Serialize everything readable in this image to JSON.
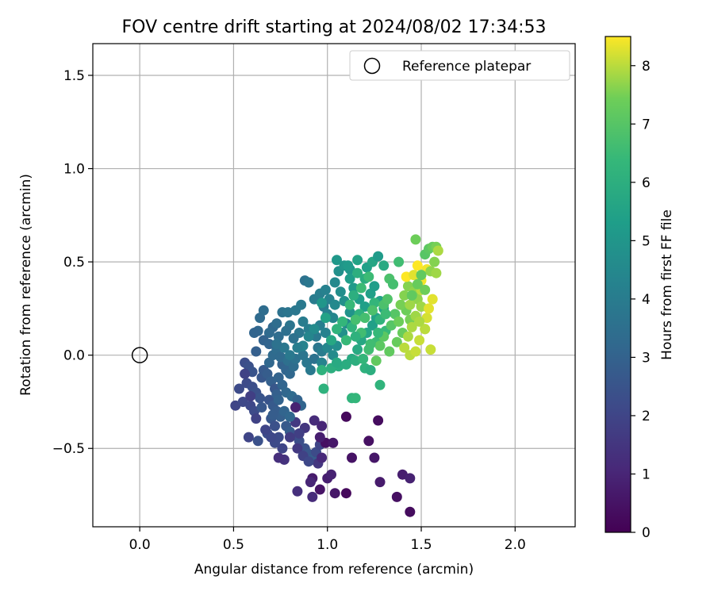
{
  "chart_data": {
    "type": "scatter",
    "title": "FOV centre drift starting at 2024/08/02 17:34:53",
    "xlabel": "Angular distance from reference (arcmin)",
    "ylabel": "Rotation from reference (arcmin)",
    "xlim": [
      -0.25,
      2.32
    ],
    "ylim": [
      -0.92,
      1.67
    ],
    "xticks": [
      0.0,
      0.5,
      1.0,
      1.5,
      2.0
    ],
    "xtick_labels": [
      "0.0",
      "0.5",
      "1.0",
      "1.5",
      "2.0"
    ],
    "yticks": [
      -0.5,
      0.0,
      0.5,
      1.0,
      1.5
    ],
    "ytick_labels": [
      "−0.5",
      "0.0",
      "0.5",
      "1.0",
      "1.5"
    ],
    "grid": true,
    "legend": {
      "position": "upper-right",
      "entries": [
        {
          "label": "Reference platepar",
          "marker": "open-circle"
        }
      ]
    },
    "reference_point": {
      "x": 0.0,
      "y": 0.0
    },
    "colorbar": {
      "label": "Hours from first FF file",
      "min": 0,
      "max": 8.5,
      "ticks": [
        0,
        1,
        2,
        3,
        4,
        5,
        6,
        7,
        8
      ],
      "colormap": "viridis"
    },
    "points": [
      [
        0.51,
        -0.27,
        2.0
      ],
      [
        0.55,
        -0.25,
        2.1
      ],
      [
        0.53,
        -0.18,
        2.2
      ],
      [
        0.56,
        -0.04,
        2.3
      ],
      [
        0.58,
        -0.06,
        2.4
      ],
      [
        0.6,
        -0.09,
        2.5
      ],
      [
        0.57,
        -0.15,
        2.2
      ],
      [
        0.6,
        -0.17,
        2.3
      ],
      [
        0.62,
        -0.2,
        2.4
      ],
      [
        0.64,
        -0.23,
        2.5
      ],
      [
        0.59,
        -0.27,
        2.1
      ],
      [
        0.61,
        -0.3,
        2.2
      ],
      [
        0.58,
        -0.44,
        2.0
      ],
      [
        0.63,
        -0.46,
        2.4
      ],
      [
        0.65,
        -0.12,
        2.6
      ],
      [
        0.66,
        -0.08,
        2.7
      ],
      [
        0.68,
        -0.1,
        2.8
      ],
      [
        0.7,
        -0.14,
        2.9
      ],
      [
        0.72,
        -0.18,
        2.6
      ],
      [
        0.69,
        -0.24,
        2.5
      ],
      [
        0.71,
        -0.27,
        2.7
      ],
      [
        0.73,
        -0.3,
        2.8
      ],
      [
        0.75,
        -0.33,
        2.9
      ],
      [
        0.7,
        -0.34,
        2.6
      ],
      [
        0.72,
        -0.38,
        2.4
      ],
      [
        0.68,
        -0.42,
        2.3
      ],
      [
        0.74,
        -0.44,
        2.2
      ],
      [
        0.78,
        -0.38,
        2.7
      ],
      [
        0.8,
        -0.41,
        2.8
      ],
      [
        0.82,
        -0.43,
        2.5
      ],
      [
        0.85,
        -0.46,
        2.3
      ],
      [
        0.88,
        -0.5,
        2.4
      ],
      [
        0.9,
        -0.53,
        2.6
      ],
      [
        0.92,
        -0.56,
        2.8
      ],
      [
        0.94,
        -0.52,
        2.2
      ],
      [
        0.96,
        -0.48,
        2.0
      ],
      [
        0.76,
        -0.05,
        3.0
      ],
      [
        0.78,
        -0.08,
        3.1
      ],
      [
        0.8,
        -0.1,
        3.2
      ],
      [
        0.74,
        -0.12,
        3.0
      ],
      [
        0.76,
        -0.16,
        3.1
      ],
      [
        0.78,
        -0.2,
        3.2
      ],
      [
        0.81,
        -0.22,
        3.3
      ],
      [
        0.84,
        -0.24,
        3.0
      ],
      [
        0.86,
        -0.27,
        3.1
      ],
      [
        0.73,
        -0.21,
        2.9
      ],
      [
        0.69,
        -0.04,
        3.2
      ],
      [
        0.71,
        0.0,
        3.3
      ],
      [
        0.73,
        0.03,
        3.4
      ],
      [
        0.75,
        -0.01,
        3.3
      ],
      [
        0.79,
        -0.03,
        3.5
      ],
      [
        0.82,
        -0.06,
        3.4
      ],
      [
        0.83,
        -0.02,
        3.6
      ],
      [
        0.87,
        0.0,
        3.7
      ],
      [
        0.89,
        -0.04,
        3.8
      ],
      [
        0.91,
        -0.08,
        3.9
      ],
      [
        0.93,
        -0.02,
        3.6
      ],
      [
        0.95,
        0.04,
        3.8
      ],
      [
        0.97,
        0.02,
        4.0
      ],
      [
        0.94,
        0.1,
        3.9
      ],
      [
        0.9,
        0.14,
        4.1
      ],
      [
        0.87,
        0.18,
        4.0
      ],
      [
        0.85,
        0.12,
        3.8
      ],
      [
        0.82,
        0.09,
        3.6
      ],
      [
        0.8,
        0.16,
        3.7
      ],
      [
        0.78,
        0.13,
        3.5
      ],
      [
        0.74,
        0.1,
        3.4
      ],
      [
        0.71,
        0.15,
        3.2
      ],
      [
        0.69,
        0.12,
        3.3
      ],
      [
        0.66,
        0.08,
        3.0
      ],
      [
        0.63,
        0.13,
        3.2
      ],
      [
        0.61,
        0.12,
        3.1
      ],
      [
        0.62,
        0.02,
        2.9
      ],
      [
        0.64,
        0.2,
        3.3
      ],
      [
        0.66,
        0.24,
        3.4
      ],
      [
        0.69,
        0.06,
        3.1
      ],
      [
        0.73,
        0.17,
        3.4
      ],
      [
        0.76,
        0.23,
        3.6
      ],
      [
        0.79,
        0.23,
        3.7
      ],
      [
        0.83,
        0.24,
        3.8
      ],
      [
        0.86,
        0.27,
        3.9
      ],
      [
        0.88,
        0.4,
        3.6
      ],
      [
        0.9,
        0.39,
        3.8
      ],
      [
        0.93,
        0.3,
        4.0
      ],
      [
        0.96,
        0.33,
        4.1
      ],
      [
        0.99,
        0.35,
        4.2
      ],
      [
        1.01,
        0.3,
        4.3
      ],
      [
        0.98,
        0.26,
        4.0
      ],
      [
        1.0,
        0.22,
        4.2
      ],
      [
        1.03,
        0.2,
        4.4
      ],
      [
        1.04,
        0.27,
        4.5
      ],
      [
        0.96,
        0.16,
        4.1
      ],
      [
        0.99,
        0.12,
        4.2
      ],
      [
        1.02,
        0.08,
        4.3
      ],
      [
        1.0,
        0.04,
        4.4
      ],
      [
        0.97,
        -0.04,
        4.3
      ],
      [
        1.03,
        0.0,
        4.6
      ],
      [
        1.05,
        0.05,
        4.7
      ],
      [
        1.08,
        0.12,
        4.8
      ],
      [
        1.1,
        0.17,
        4.6
      ],
      [
        1.12,
        0.23,
        4.9
      ],
      [
        1.09,
        0.29,
        4.8
      ],
      [
        1.07,
        0.34,
        4.7
      ],
      [
        1.04,
        0.39,
        4.5
      ],
      [
        1.06,
        0.45,
        4.8
      ],
      [
        1.09,
        0.48,
        5.0
      ],
      [
        1.12,
        0.46,
        5.1
      ],
      [
        1.14,
        0.36,
        5.2
      ],
      [
        1.12,
        0.41,
        5.3
      ],
      [
        1.17,
        0.3,
        5.3
      ],
      [
        1.2,
        0.26,
        5.4
      ],
      [
        1.23,
        0.33,
        5.4
      ],
      [
        1.25,
        0.37,
        5.3
      ],
      [
        1.28,
        0.29,
        5.5
      ],
      [
        1.3,
        0.25,
        5.6
      ],
      [
        1.26,
        0.2,
        5.5
      ],
      [
        1.24,
        0.16,
        5.4
      ],
      [
        1.21,
        0.12,
        5.6
      ],
      [
        1.18,
        0.08,
        5.7
      ],
      [
        1.16,
        0.03,
        5.8
      ],
      [
        1.13,
        -0.02,
        5.8
      ],
      [
        1.1,
        -0.05,
        5.9
      ],
      [
        1.06,
        -0.06,
        5.9
      ],
      [
        1.02,
        -0.07,
        6.0
      ],
      [
        0.97,
        -0.08,
        6.1
      ],
      [
        1.15,
        -0.03,
        6.0
      ],
      [
        1.2,
        -0.07,
        6.1
      ],
      [
        1.23,
        -0.08,
        6.0
      ],
      [
        1.28,
        -0.16,
        6.2
      ],
      [
        1.13,
        -0.23,
        6.2
      ],
      [
        1.15,
        -0.23,
        6.3
      ],
      [
        0.98,
        -0.18,
        6.1
      ],
      [
        1.05,
        0.51,
        5.1
      ],
      [
        1.11,
        0.48,
        5.2
      ],
      [
        1.16,
        0.51,
        5.5
      ],
      [
        1.21,
        0.47,
        5.4
      ],
      [
        1.24,
        0.5,
        5.6
      ],
      [
        1.27,
        0.53,
        5.2
      ],
      [
        1.3,
        0.48,
        5.8
      ],
      [
        1.2,
        0.41,
        5.9
      ],
      [
        1.16,
        0.44,
        6.0
      ],
      [
        1.14,
        0.32,
        6.0
      ],
      [
        1.17,
        0.22,
        6.1
      ],
      [
        1.13,
        0.15,
        6.2
      ],
      [
        1.08,
        0.18,
        6.3
      ],
      [
        1.05,
        0.14,
        6.2
      ],
      [
        1.1,
        0.08,
        6.4
      ],
      [
        1.12,
        0.27,
        6.4
      ],
      [
        1.18,
        0.36,
        6.5
      ],
      [
        1.22,
        0.42,
        6.5
      ],
      [
        1.25,
        0.28,
        6.3
      ],
      [
        1.28,
        0.19,
        6.2
      ],
      [
        1.31,
        0.13,
        6.4
      ],
      [
        1.26,
        0.07,
        6.5
      ],
      [
        1.22,
        0.03,
        6.6
      ],
      [
        1.18,
        0.12,
        6.6
      ],
      [
        1.15,
        0.19,
        6.7
      ],
      [
        1.2,
        0.2,
        6.7
      ],
      [
        1.24,
        0.24,
        6.8
      ],
      [
        1.3,
        0.27,
        6.8
      ],
      [
        1.35,
        0.38,
        6.9
      ],
      [
        1.32,
        0.3,
        6.9
      ],
      [
        1.36,
        0.22,
        7.0
      ],
      [
        1.34,
        0.16,
        7.0
      ],
      [
        1.3,
        0.1,
        7.1
      ],
      [
        1.28,
        0.05,
        7.1
      ],
      [
        1.26,
        -0.03,
        7.2
      ],
      [
        1.33,
        0.02,
        7.2
      ],
      [
        1.37,
        0.07,
        7.3
      ],
      [
        1.4,
        0.12,
        7.3
      ],
      [
        1.38,
        0.18,
        7.4
      ],
      [
        1.42,
        0.24,
        7.4
      ],
      [
        1.44,
        0.19,
        7.5
      ],
      [
        1.39,
        0.27,
        7.5
      ],
      [
        1.41,
        0.32,
        7.6
      ],
      [
        1.43,
        0.37,
        7.6
      ],
      [
        1.46,
        0.34,
        7.7
      ],
      [
        1.48,
        0.3,
        7.7
      ],
      [
        1.5,
        0.26,
        7.8
      ],
      [
        1.47,
        0.21,
        7.8
      ],
      [
        1.45,
        0.15,
        7.9
      ],
      [
        1.43,
        0.1,
        7.9
      ],
      [
        1.41,
        0.04,
        8.0
      ],
      [
        1.44,
        0.0,
        8.0
      ],
      [
        1.47,
        0.02,
        8.1
      ],
      [
        1.49,
        0.08,
        8.1
      ],
      [
        1.52,
        0.14,
        8.2
      ],
      [
        1.53,
        0.2,
        8.2
      ],
      [
        1.54,
        0.25,
        8.3
      ],
      [
        1.56,
        0.3,
        8.3
      ],
      [
        1.5,
        0.4,
        8.4
      ],
      [
        1.53,
        0.46,
        8.4
      ],
      [
        1.48,
        0.48,
        8.5
      ],
      [
        1.42,
        0.42,
        8.5
      ],
      [
        1.46,
        0.43,
        8.3
      ],
      [
        1.5,
        0.35,
        8.0
      ],
      [
        1.44,
        0.27,
        7.8
      ],
      [
        1.47,
        0.62,
        7.4
      ],
      [
        1.5,
        0.43,
        7.2
      ],
      [
        1.52,
        0.54,
        7.0
      ],
      [
        1.54,
        0.57,
        7.1
      ],
      [
        1.56,
        0.58,
        7.3
      ],
      [
        1.58,
        0.58,
        7.5
      ],
      [
        1.57,
        0.5,
        7.6
      ],
      [
        1.55,
        0.45,
        7.7
      ],
      [
        1.58,
        0.44,
        7.8
      ],
      [
        1.59,
        0.56,
        7.9
      ],
      [
        1.52,
        0.35,
        7.4
      ],
      [
        1.48,
        0.38,
        7.3
      ],
      [
        1.45,
        0.32,
        7.2
      ],
      [
        1.55,
        0.03,
        8.1
      ],
      [
        1.52,
        0.14,
        8.0
      ],
      [
        1.49,
        0.18,
        7.9
      ],
      [
        1.33,
        0.41,
        6.8
      ],
      [
        1.38,
        0.5,
        6.6
      ],
      [
        1.35,
        0.38,
        6.7
      ],
      [
        1.31,
        0.22,
        6.5
      ],
      [
        1.27,
        0.12,
        6.4
      ],
      [
        1.23,
        0.06,
        6.6
      ],
      [
        1.19,
        -0.02,
        6.3
      ],
      [
        1.15,
        0.1,
        6.1
      ],
      [
        1.05,
        -0.04,
        5.8
      ],
      [
        1.02,
        0.08,
        5.7
      ],
      [
        0.99,
        0.2,
        5.5
      ],
      [
        0.97,
        0.28,
        5.0
      ],
      [
        0.93,
        0.14,
        4.6
      ],
      [
        0.9,
        0.1,
        4.4
      ],
      [
        0.87,
        0.05,
        4.3
      ],
      [
        0.84,
        0.04,
        4.1
      ],
      [
        0.8,
        0.0,
        3.9
      ],
      [
        0.77,
        0.04,
        3.8
      ],
      [
        0.73,
        0.06,
        3.6
      ],
      [
        1.1,
        -0.33,
        0.2
      ],
      [
        1.27,
        -0.35,
        0.3
      ],
      [
        1.22,
        -0.46,
        0.4
      ],
      [
        1.13,
        -0.55,
        0.5
      ],
      [
        1.25,
        -0.55,
        0.6
      ],
      [
        1.28,
        -0.68,
        0.7
      ],
      [
        1.4,
        -0.64,
        0.8
      ],
      [
        1.44,
        -0.66,
        0.9
      ],
      [
        1.37,
        -0.76,
        0.4
      ],
      [
        1.44,
        -0.84,
        0.3
      ],
      [
        1.1,
        -0.74,
        0.2
      ],
      [
        1.04,
        -0.74,
        0.6
      ],
      [
        1.0,
        -0.66,
        0.8
      ],
      [
        1.02,
        -0.64,
        0.9
      ],
      [
        0.96,
        -0.72,
        0.5
      ],
      [
        0.92,
        -0.66,
        0.7
      ],
      [
        0.91,
        -0.68,
        1.0
      ],
      [
        0.92,
        -0.76,
        1.2
      ],
      [
        0.84,
        -0.73,
        1.3
      ],
      [
        0.95,
        -0.58,
        1.5
      ],
      [
        0.97,
        -0.55,
        1.1
      ],
      [
        0.99,
        -0.47,
        0.4
      ],
      [
        1.03,
        -0.47,
        0.6
      ],
      [
        0.96,
        -0.44,
        0.8
      ],
      [
        0.97,
        -0.38,
        1.0
      ],
      [
        0.93,
        -0.35,
        1.2
      ],
      [
        0.88,
        -0.39,
        1.5
      ],
      [
        0.85,
        -0.42,
        1.8
      ],
      [
        0.83,
        -0.36,
        1.6
      ],
      [
        0.83,
        -0.28,
        0.9
      ],
      [
        0.8,
        -0.44,
        1.7
      ],
      [
        0.77,
        -0.56,
        1.4
      ],
      [
        0.74,
        -0.55,
        1.3
      ],
      [
        0.84,
        -0.5,
        1.6
      ],
      [
        0.87,
        -0.54,
        1.9
      ],
      [
        0.9,
        -0.57,
        2.1
      ],
      [
        0.76,
        -0.5,
        2.0
      ],
      [
        0.72,
        -0.47,
        2.2
      ],
      [
        0.7,
        -0.44,
        2.1
      ],
      [
        0.67,
        -0.4,
        2.0
      ],
      [
        0.62,
        -0.34,
        1.9
      ],
      [
        0.59,
        -0.22,
        1.8
      ],
      [
        0.56,
        -0.1,
        1.9
      ],
      [
        0.65,
        -0.28,
        2.6
      ],
      [
        0.71,
        -0.32,
        2.8
      ],
      [
        0.74,
        -0.24,
        3.0
      ],
      [
        0.77,
        -0.3,
        3.1
      ],
      [
        0.8,
        -0.33,
        3.2
      ]
    ]
  }
}
